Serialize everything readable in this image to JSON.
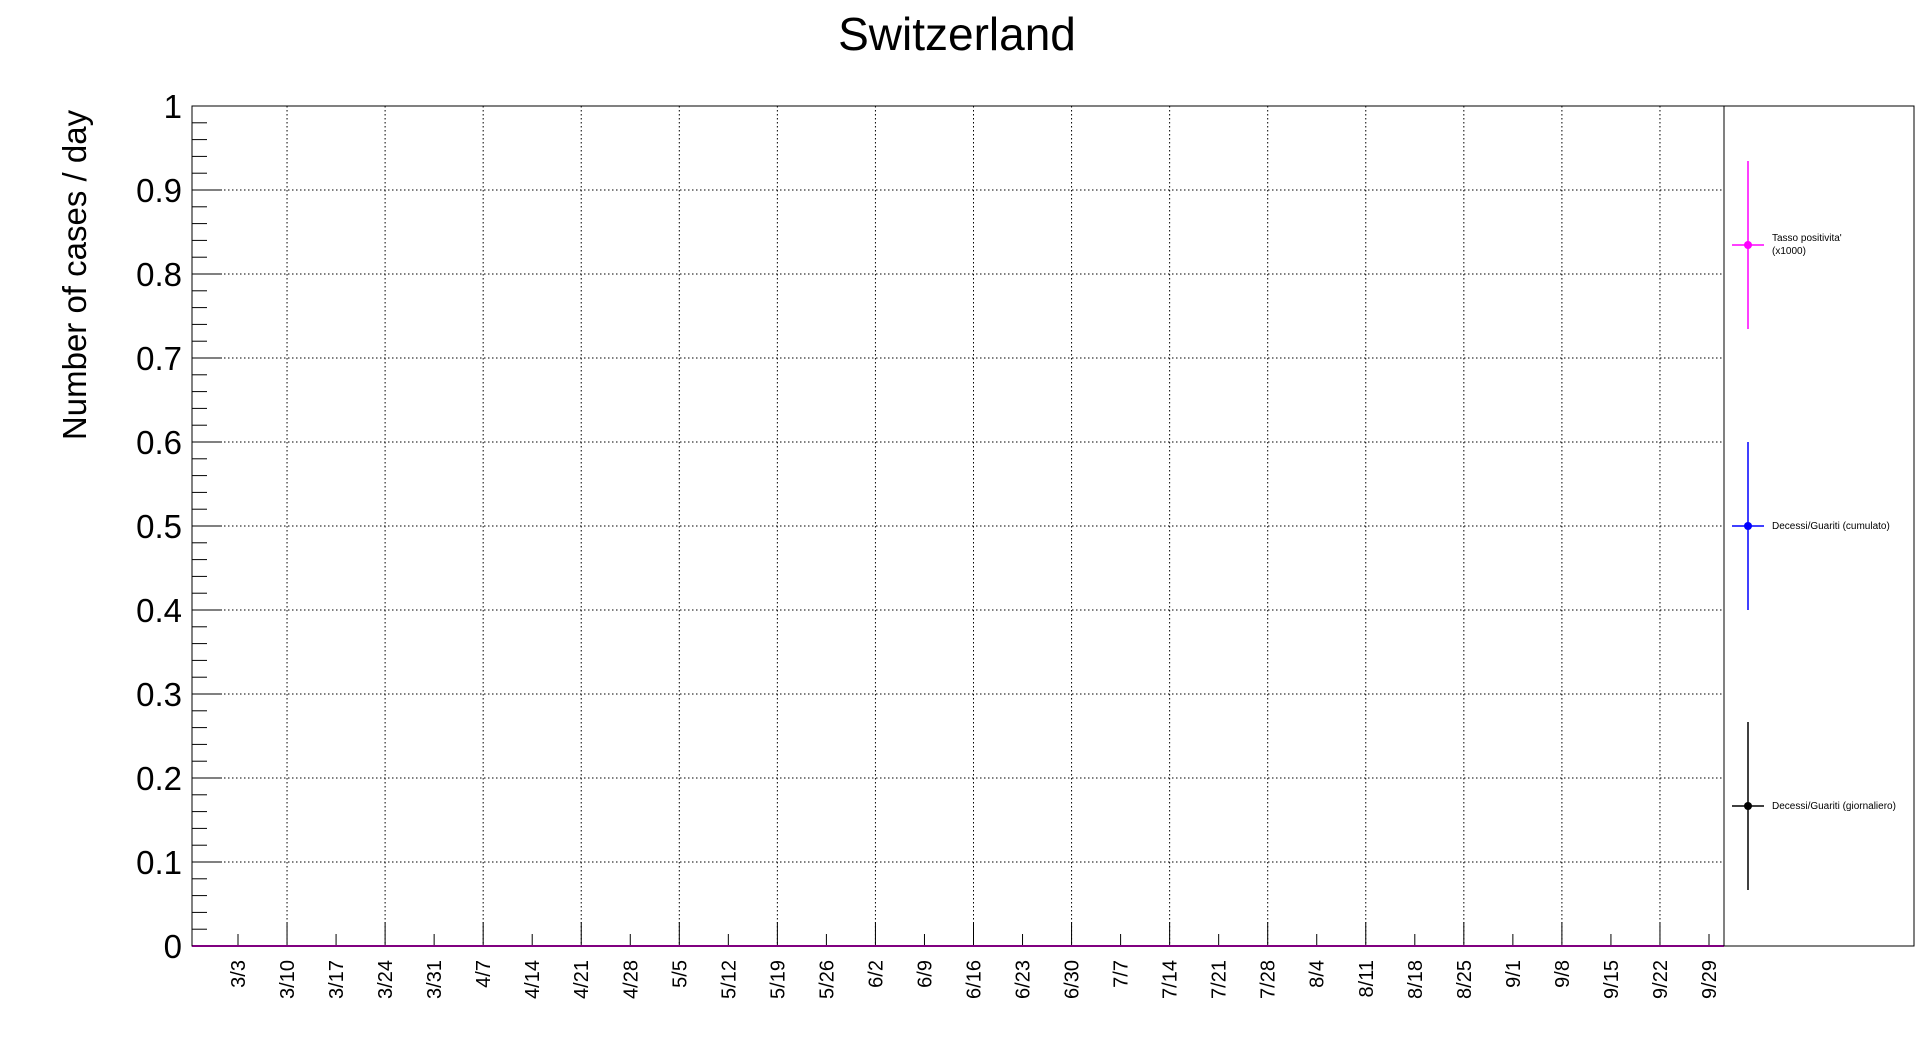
{
  "chart_data": {
    "type": "line",
    "title": "Switzerland",
    "xlabel": "",
    "ylabel": "Number of cases / day",
    "ylim": [
      0,
      1
    ],
    "yticks": [
      "0",
      "0.1",
      "0.2",
      "0.3",
      "0.4",
      "0.5",
      "0.6",
      "0.7",
      "0.8",
      "0.9",
      "1"
    ],
    "grid": true,
    "legend_position": "right",
    "categories": [
      "3/3",
      "3/10",
      "3/17",
      "3/24",
      "3/31",
      "4/7",
      "4/14",
      "4/21",
      "4/28",
      "5/5",
      "5/12",
      "5/19",
      "5/26",
      "6/2",
      "6/9",
      "6/16",
      "6/23",
      "6/30",
      "7/7",
      "7/14",
      "7/21",
      "7/28",
      "8/4",
      "8/11",
      "8/18",
      "8/25",
      "9/1",
      "9/8",
      "9/15",
      "9/22",
      "9/29"
    ],
    "series": [
      {
        "name": "Tasso positivita' (x1000)",
        "color": "#ff00ff",
        "values": [
          0,
          0,
          0,
          0,
          0,
          0,
          0,
          0,
          0,
          0,
          0,
          0,
          0,
          0,
          0,
          0,
          0,
          0,
          0,
          0,
          0,
          0,
          0,
          0,
          0,
          0,
          0,
          0,
          0,
          0,
          0
        ]
      },
      {
        "name": "Decessi/Guariti (cumulato)",
        "color": "#0000ff",
        "values": [
          0,
          0,
          0,
          0,
          0,
          0,
          0,
          0,
          0,
          0,
          0,
          0,
          0,
          0,
          0,
          0,
          0,
          0,
          0,
          0,
          0,
          0,
          0,
          0,
          0,
          0,
          0,
          0,
          0,
          0,
          0
        ]
      },
      {
        "name": "Decessi/Guariti (giornaliero)",
        "color": "#000000",
        "values": [
          0,
          0,
          0,
          0,
          0,
          0,
          0,
          0,
          0,
          0,
          0,
          0,
          0,
          0,
          0,
          0,
          0,
          0,
          0,
          0,
          0,
          0,
          0,
          0,
          0,
          0,
          0,
          0,
          0,
          0,
          0
        ]
      }
    ],
    "legend": [
      {
        "line1": "Tasso positivita'",
        "line2": "(x1000)"
      },
      {
        "line1": "Decessi/Guariti (cumulato)",
        "line2": ""
      },
      {
        "line1": "Decessi/Guariti (giornaliero)",
        "line2": ""
      }
    ]
  }
}
